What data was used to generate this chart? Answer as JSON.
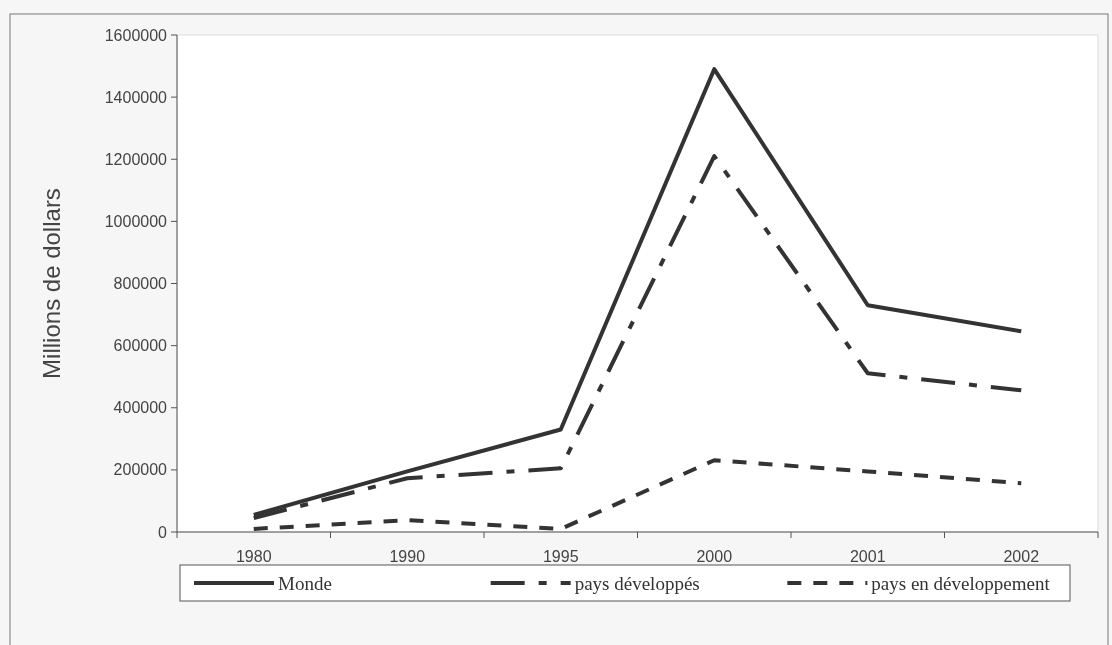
{
  "chart_data": {
    "type": "line",
    "ylabel": "Millions de dollars",
    "categories": [
      "1980",
      "1990",
      "1995",
      "2000",
      "2001",
      "2002"
    ],
    "ylim": [
      0,
      1600000
    ],
    "yticks": [
      0,
      200000,
      400000,
      600000,
      800000,
      1000000,
      1200000,
      1400000,
      1600000
    ],
    "grid": false,
    "legend": "bottom",
    "series": [
      {
        "name": "Monde",
        "color": "#333333",
        "line_style": "solid",
        "values": [
          55000,
          195000,
          330000,
          1490000,
          730000,
          646000
        ]
      },
      {
        "name": "pays développés",
        "color": "#333333",
        "line_style": "dashdot",
        "values": [
          45000,
          173000,
          205000,
          1210000,
          511000,
          456000
        ]
      },
      {
        "name": "pays en développement",
        "color": "#333333",
        "line_style": "dashed",
        "values": [
          10000,
          38000,
          10000,
          231000,
          195000,
          157000
        ]
      }
    ]
  }
}
